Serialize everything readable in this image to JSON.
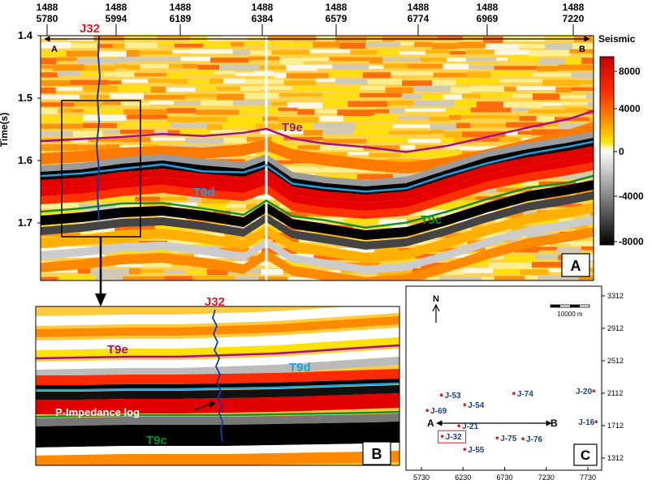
{
  "panel_a": {
    "letter": "A",
    "trace_labels": [
      {
        "top": "1488",
        "bottom": "5780"
      },
      {
        "top": "1488",
        "bottom": "5994"
      },
      {
        "top": "1488",
        "bottom": "6189"
      },
      {
        "top": "1488",
        "bottom": "6384"
      },
      {
        "top": "1488",
        "bottom": "6579"
      },
      {
        "top": "1488",
        "bottom": "6774"
      },
      {
        "top": "1488",
        "bottom": "6969"
      },
      {
        "top": "1488",
        "bottom": "7220"
      }
    ],
    "ylabel": "Time(s)",
    "time_ticks": [
      "1.4",
      "1.5",
      "1.6",
      "1.7"
    ],
    "well_label": "J32",
    "section_start": "A",
    "section_end": "B",
    "horizons": {
      "top": "T9e",
      "middle": "T9d",
      "bottom": "T9c"
    }
  },
  "colorbar": {
    "title": "Seismic",
    "ticks": [
      "8000",
      "4000",
      "0",
      "-4000",
      "-8000"
    ],
    "colors": [
      "#c00000",
      "#ff2a00",
      "#ff8a00",
      "#ffe300",
      "#ffffff",
      "#9a9a9a",
      "#000000"
    ]
  },
  "panel_b": {
    "letter": "B",
    "well_label": "J32",
    "log_label": "P-Impedance log",
    "horizons": {
      "top": "T9e",
      "middle": "T9d",
      "bottom": "T9c"
    }
  },
  "panel_c": {
    "letter": "C",
    "north": "N",
    "scale_label": "10000 m",
    "line_start": "A",
    "line_end": "B",
    "x_ticks": [
      "5730",
      "6230",
      "6730",
      "7230",
      "7730"
    ],
    "y_ticks": [
      "3312",
      "2912",
      "2512",
      "2112",
      "1712",
      "1312"
    ],
    "wells": [
      {
        "name": "J-53",
        "x": 5970,
        "y": 2090
      },
      {
        "name": "J-74",
        "x": 6840,
        "y": 2110
      },
      {
        "name": "J-20",
        "x": 7800,
        "y": 2140
      },
      {
        "name": "J-69",
        "x": 5800,
        "y": 1900
      },
      {
        "name": "J-54",
        "x": 6250,
        "y": 1970
      },
      {
        "name": "J-21",
        "x": 6180,
        "y": 1710
      },
      {
        "name": "J-16",
        "x": 7830,
        "y": 1760
      },
      {
        "name": "J-75",
        "x": 6640,
        "y": 1560
      },
      {
        "name": "J-76",
        "x": 6950,
        "y": 1550
      },
      {
        "name": "J-32",
        "x": 5980,
        "y": 1580
      },
      {
        "name": "J-55",
        "x": 6250,
        "y": 1420
      }
    ]
  },
  "colors": {
    "t9e": "#a0128a",
    "t9d": "#1aa3e0",
    "t9c": "#12902a",
    "well_red": "#e0192b",
    "log_blue": "#1a3aa0",
    "well_name_blue": "#1f3f8a"
  }
}
